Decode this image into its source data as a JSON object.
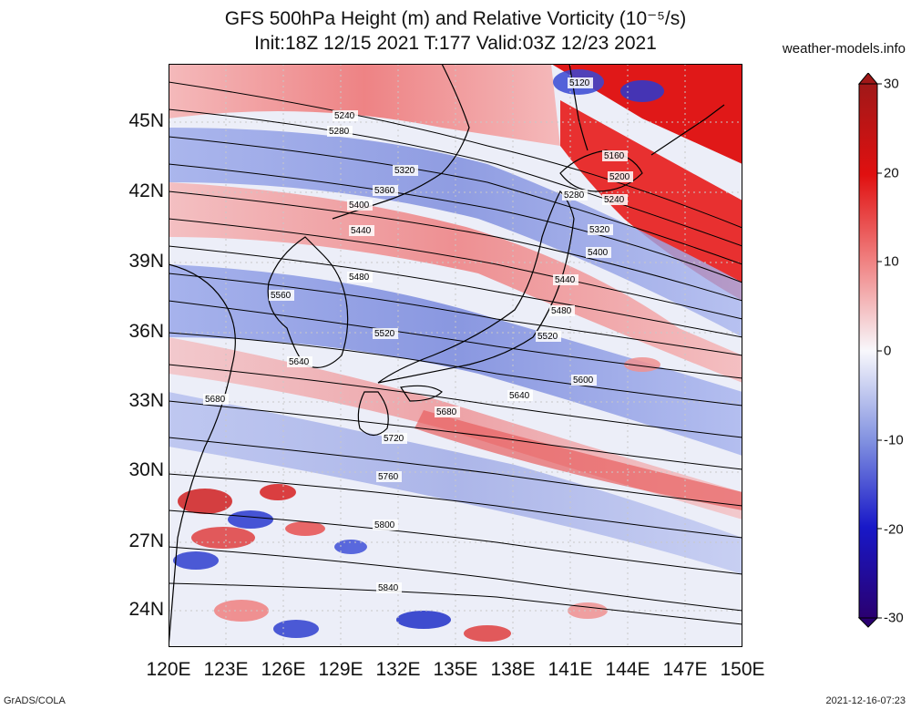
{
  "title_line1": "GFS 500hPa Height (m) and Relative Vorticity (10⁻⁵/s)",
  "title_line2": "Init:18Z 12/15 2021 T:177 Valid:03Z 12/23 2021",
  "site": "weather-models.info",
  "footer_left": "GrADS/COLA",
  "footer_right": "2021-12-16-07:23",
  "lat_labels": [
    "45N",
    "42N",
    "39N",
    "36N",
    "33N",
    "30N",
    "27N",
    "24N"
  ],
  "lon_labels": [
    "120E",
    "123E",
    "126E",
    "129E",
    "132E",
    "135E",
    "138E",
    "141E",
    "144E",
    "147E",
    "150E"
  ],
  "colorbar_labels": [
    "30",
    "20",
    "10",
    "0",
    "-10",
    "-20",
    "-30"
  ],
  "colors": {
    "strong_positive": "#d41010",
    "positive": "#f08080",
    "neutral": "#f4f4f8",
    "negative": "#8090e0",
    "strong_negative": "#2020c0",
    "contour": "#000000"
  },
  "contour_labels": [
    "5120",
    "5160",
    "5200",
    "5240",
    "5280",
    "5320",
    "5360",
    "5400",
    "5440",
    "5480",
    "5520",
    "5560",
    "5600",
    "5640",
    "5680",
    "5720",
    "5760",
    "5800",
    "5840"
  ],
  "map_extent": {
    "lon": [
      120,
      150
    ],
    "lat": [
      22.5,
      47.5
    ]
  }
}
